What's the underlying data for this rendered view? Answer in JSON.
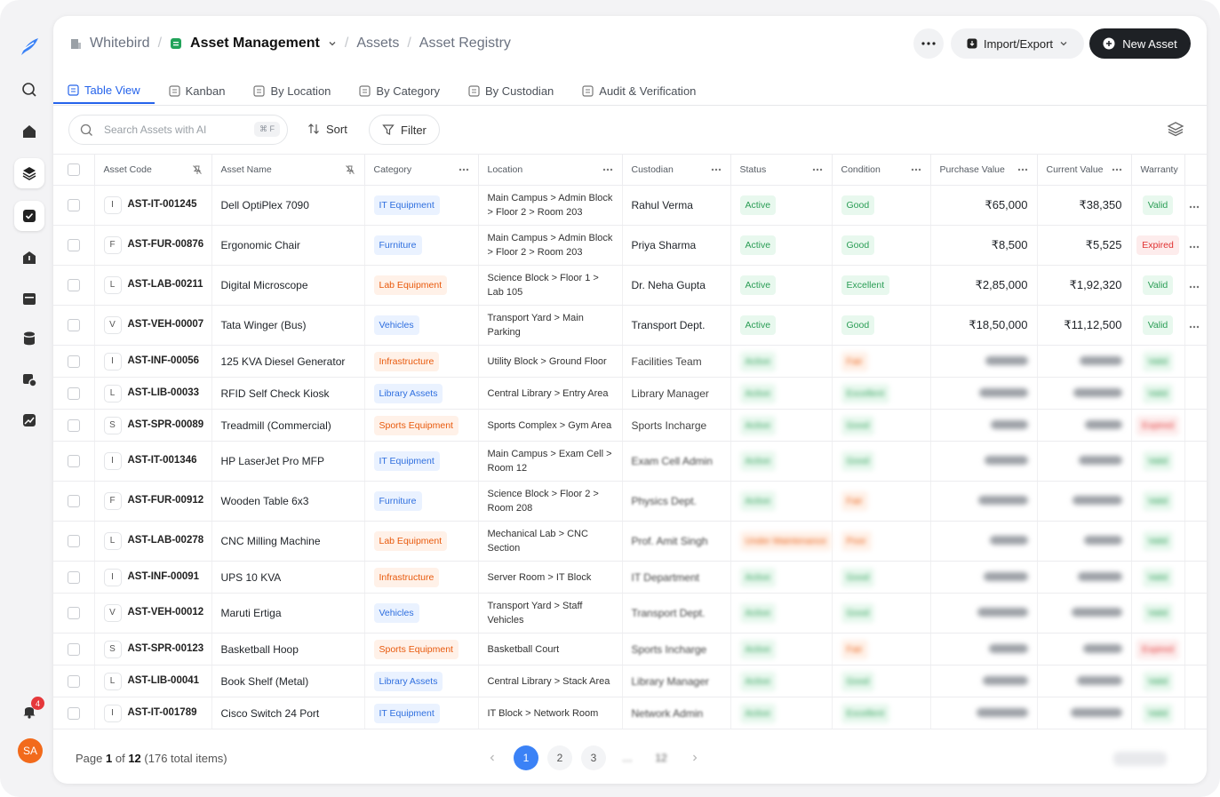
{
  "sidebar": {
    "notification_count": "4",
    "avatar": "SA"
  },
  "breadcrumb": [
    "Whitebird",
    "Asset Management",
    "Assets",
    "Asset Registry"
  ],
  "actions": {
    "import_export": "Import/Export",
    "new_asset": "New Asset"
  },
  "tabs": [
    "Table View",
    "Kanban",
    "By Location",
    "By Category",
    "By Custodian",
    "Audit & Verification"
  ],
  "toolbar": {
    "search_placeholder": "Search Assets with AI",
    "shortcut": "⌘ F",
    "sort": "Sort",
    "filter": "Filter"
  },
  "table": {
    "columns": [
      "Asset Code",
      "Asset Name",
      "Category",
      "Location",
      "Custodian",
      "Status",
      "Condition",
      "Purchase Value",
      "Current Value",
      "Warranty"
    ],
    "rows": [
      {
        "icon": "I",
        "code": "AST-IT-001245",
        "name": "Dell OptiPlex 7090",
        "category": {
          "label": "IT Equipment",
          "tone": "blue"
        },
        "location": "Main Campus > Admin Block > Floor 2 > Room 203",
        "custodian": "Rahul Verma",
        "status": {
          "label": "Active",
          "tone": "green"
        },
        "condition": {
          "label": "Good",
          "tone": "green"
        },
        "purchase_value": "₹65,000",
        "current_value": "₹38,350",
        "warranty": {
          "label": "Valid",
          "tone": "green"
        }
      },
      {
        "icon": "F",
        "code": "AST-FUR-00876",
        "name": "Ergonomic Chair",
        "category": {
          "label": "Furniture",
          "tone": "blue"
        },
        "location": "Main Campus > Admin Block > Floor 2 > Room 203",
        "custodian": "Priya Sharma",
        "status": {
          "label": "Active",
          "tone": "green"
        },
        "condition": {
          "label": "Good",
          "tone": "green"
        },
        "purchase_value": "₹8,500",
        "current_value": "₹5,525",
        "warranty": {
          "label": "Expired",
          "tone": "red"
        }
      },
      {
        "icon": "L",
        "code": "AST-LAB-00211",
        "name": "Digital Microscope",
        "category": {
          "label": "Lab Equipment",
          "tone": "orange"
        },
        "location": "Science Block > Floor 1 > Lab 105",
        "custodian": "Dr. Neha Gupta",
        "status": {
          "label": "Active",
          "tone": "green"
        },
        "condition": {
          "label": "Excellent",
          "tone": "green"
        },
        "purchase_value": "₹2,85,000",
        "current_value": "₹1,92,320",
        "warranty": {
          "label": "Valid",
          "tone": "green"
        }
      },
      {
        "icon": "V",
        "code": "AST-VEH-00007",
        "name": "Tata Winger (Bus)",
        "category": {
          "label": "Vehicles",
          "tone": "blue"
        },
        "location": "Transport Yard > Main Parking",
        "custodian": "Transport Dept.",
        "status": {
          "label": "Active",
          "tone": "green"
        },
        "condition": {
          "label": "Good",
          "tone": "green"
        },
        "purchase_value": "₹18,50,000",
        "current_value": "₹11,12,500",
        "warranty": {
          "label": "Valid",
          "tone": "green"
        }
      },
      {
        "icon": "I",
        "code": "AST-INF-00056",
        "name": "125 KVA Diesel Generator",
        "category": {
          "label": "Infrastructure",
          "tone": "orange"
        },
        "location": "Utility Block > Ground Floor",
        "custodian": "Facilities Team",
        "status": {
          "label": "Active",
          "tone": "green"
        },
        "condition": {
          "label": "Fair",
          "tone": "orange"
        },
        "warranty": {
          "label": "Valid",
          "tone": "green"
        }
      },
      {
        "icon": "L",
        "code": "AST-LIB-00033",
        "name": "RFID Self Check Kiosk",
        "category": {
          "label": "Library Assets",
          "tone": "blue"
        },
        "location": "Central Library > Entry Area",
        "custodian": "Library Manager",
        "status": {
          "label": "Active",
          "tone": "green"
        },
        "condition": {
          "label": "Excellent",
          "tone": "green"
        },
        "warranty": {
          "label": "Valid",
          "tone": "green"
        }
      },
      {
        "icon": "S",
        "code": "AST-SPR-00089",
        "name": "Treadmill (Commercial)",
        "category": {
          "label": "Sports Equipment",
          "tone": "orange"
        },
        "location": "Sports Complex > Gym Area",
        "custodian": "Sports Incharge",
        "status": {
          "label": "Active",
          "tone": "green"
        },
        "condition": {
          "label": "Good",
          "tone": "green"
        },
        "warranty": {
          "label": "Expired",
          "tone": "red"
        }
      },
      {
        "icon": "I",
        "code": "AST-IT-001346",
        "name": "HP LaserJet Pro MFP",
        "category": {
          "label": "IT Equipment",
          "tone": "blue"
        },
        "location": "Main Campus > Exam Cell > Room 12",
        "custodian": "Exam Cell Admin",
        "status": {
          "label": "Active",
          "tone": "green"
        },
        "condition": {
          "label": "Good",
          "tone": "green"
        },
        "warranty": {
          "label": "Valid",
          "tone": "green"
        }
      },
      {
        "icon": "F",
        "code": "AST-FUR-00912",
        "name": "Wooden Table 6x3",
        "category": {
          "label": "Furniture",
          "tone": "blue"
        },
        "location": "Science Block > Floor 2 > Room 208",
        "custodian": "Physics Dept.",
        "status": {
          "label": "Active",
          "tone": "green"
        },
        "condition": {
          "label": "Fair",
          "tone": "orange"
        },
        "warranty": {
          "label": "Valid",
          "tone": "green"
        }
      },
      {
        "icon": "L",
        "code": "AST-LAB-00278",
        "name": "CNC Milling Machine",
        "category": {
          "label": "Lab Equipment",
          "tone": "orange"
        },
        "location": "Mechanical Lab > CNC Section",
        "custodian": "Prof. Amit Singh",
        "status": {
          "label": "Under Maintenance",
          "tone": "orange"
        },
        "condition": {
          "label": "Poor",
          "tone": "orange"
        },
        "warranty": {
          "label": "Valid",
          "tone": "green"
        }
      },
      {
        "icon": "I",
        "code": "AST-INF-00091",
        "name": "UPS 10 KVA",
        "category": {
          "label": "Infrastructure",
          "tone": "orange"
        },
        "location": "Server Room > IT Block",
        "custodian": "IT Department",
        "status": {
          "label": "Active",
          "tone": "green"
        },
        "condition": {
          "label": "Good",
          "tone": "green"
        },
        "warranty": {
          "label": "Valid",
          "tone": "green"
        }
      },
      {
        "icon": "V",
        "code": "AST-VEH-00012",
        "name": "Maruti Ertiga",
        "category": {
          "label": "Vehicles",
          "tone": "blue"
        },
        "location": "Transport Yard > Staff Vehicles",
        "custodian": "Transport Dept.",
        "status": {
          "label": "Active",
          "tone": "green"
        },
        "condition": {
          "label": "Good",
          "tone": "green"
        },
        "warranty": {
          "label": "Valid",
          "tone": "green"
        }
      },
      {
        "icon": "S",
        "code": "AST-SPR-00123",
        "name": "Basketball Hoop",
        "category": {
          "label": "Sports Equipment",
          "tone": "orange"
        },
        "location": "Basketball Court",
        "custodian": "Sports Incharge",
        "status": {
          "label": "Active",
          "tone": "green"
        },
        "condition": {
          "label": "Fair",
          "tone": "orange"
        },
        "warranty": {
          "label": "Expired",
          "tone": "red"
        }
      },
      {
        "icon": "L",
        "code": "AST-LIB-00041",
        "name": "Book Shelf (Metal)",
        "category": {
          "label": "Library Assets",
          "tone": "blue"
        },
        "location": "Central Library > Stack Area",
        "custodian": "Library Manager",
        "status": {
          "label": "Active",
          "tone": "green"
        },
        "condition": {
          "label": "Good",
          "tone": "green"
        },
        "warranty": {
          "label": "Valid",
          "tone": "green"
        }
      },
      {
        "icon": "I",
        "code": "AST-IT-001789",
        "name": "Cisco Switch 24 Port",
        "category": {
          "label": "IT Equipment",
          "tone": "blue"
        },
        "location": "IT Block > Network Room",
        "custodian": "Network Admin",
        "status": {
          "label": "Active",
          "tone": "green"
        },
        "condition": {
          "label": "Excellent",
          "tone": "green"
        },
        "warranty": {
          "label": "Valid",
          "tone": "green"
        }
      }
    ]
  },
  "pagination": {
    "prefix": "Page",
    "page": "1",
    "of": "of",
    "total_pages": "12",
    "total_items": "(176 total items)",
    "pages": [
      "1",
      "2",
      "3",
      "…",
      "12"
    ]
  }
}
